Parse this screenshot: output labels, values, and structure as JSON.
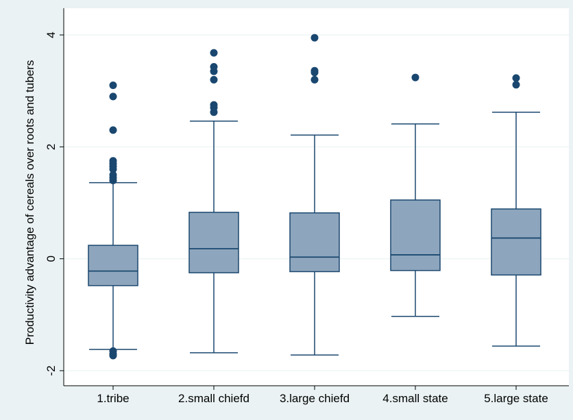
{
  "chart_data": {
    "type": "box",
    "title": "",
    "xlabel": "",
    "ylabel": "Productivity advantage of cereals over roots and tubers",
    "ylim": [
      -2.1,
      4.2
    ],
    "yticks": [
      -2,
      0,
      2,
      4
    ],
    "ytick_labels": [
      "-2",
      "0",
      "2",
      "4"
    ],
    "grid": true,
    "legend": "none",
    "colors": {
      "box_fill": "#8ea6bd",
      "box_stroke": "#1a476f",
      "outlier": "#1a476f",
      "plot_bg": "#ffffff",
      "outer_bg": "#eaf2f3",
      "grid": "#eaf2f3"
    },
    "categories": [
      "1.tribe",
      "2.small chiefd",
      "3.large chiefd",
      "4.small state",
      "5.large state"
    ],
    "boxes": [
      {
        "category": "1.tribe",
        "whisker_low": -1.62,
        "q1": -0.48,
        "median": -0.22,
        "q3": 0.24,
        "whisker_high": 1.36,
        "outliers": [
          3.1,
          2.9,
          2.3,
          1.75,
          1.7,
          1.65,
          1.6,
          1.5,
          1.45,
          1.4,
          -1.65,
          -1.7,
          -1.73
        ]
      },
      {
        "category": "2.small chiefd",
        "whisker_low": -1.68,
        "q1": -0.25,
        "median": 0.18,
        "q3": 0.83,
        "whisker_high": 2.46,
        "outliers": [
          3.68,
          3.43,
          3.35,
          3.2,
          2.75,
          2.7,
          2.62
        ]
      },
      {
        "category": "3.large chiefd",
        "whisker_low": -1.72,
        "q1": -0.23,
        "median": 0.03,
        "q3": 0.82,
        "whisker_high": 2.21,
        "outliers": [
          3.95,
          3.36,
          3.33,
          3.2
        ]
      },
      {
        "category": "4.small state",
        "whisker_low": -1.03,
        "q1": -0.21,
        "median": 0.07,
        "q3": 1.05,
        "whisker_high": 2.41,
        "outliers": [
          3.24
        ]
      },
      {
        "category": "5.large state",
        "whisker_low": -1.56,
        "q1": -0.29,
        "median": 0.37,
        "q3": 0.89,
        "whisker_high": 2.62,
        "outliers": [
          3.23,
          3.11
        ]
      }
    ]
  }
}
